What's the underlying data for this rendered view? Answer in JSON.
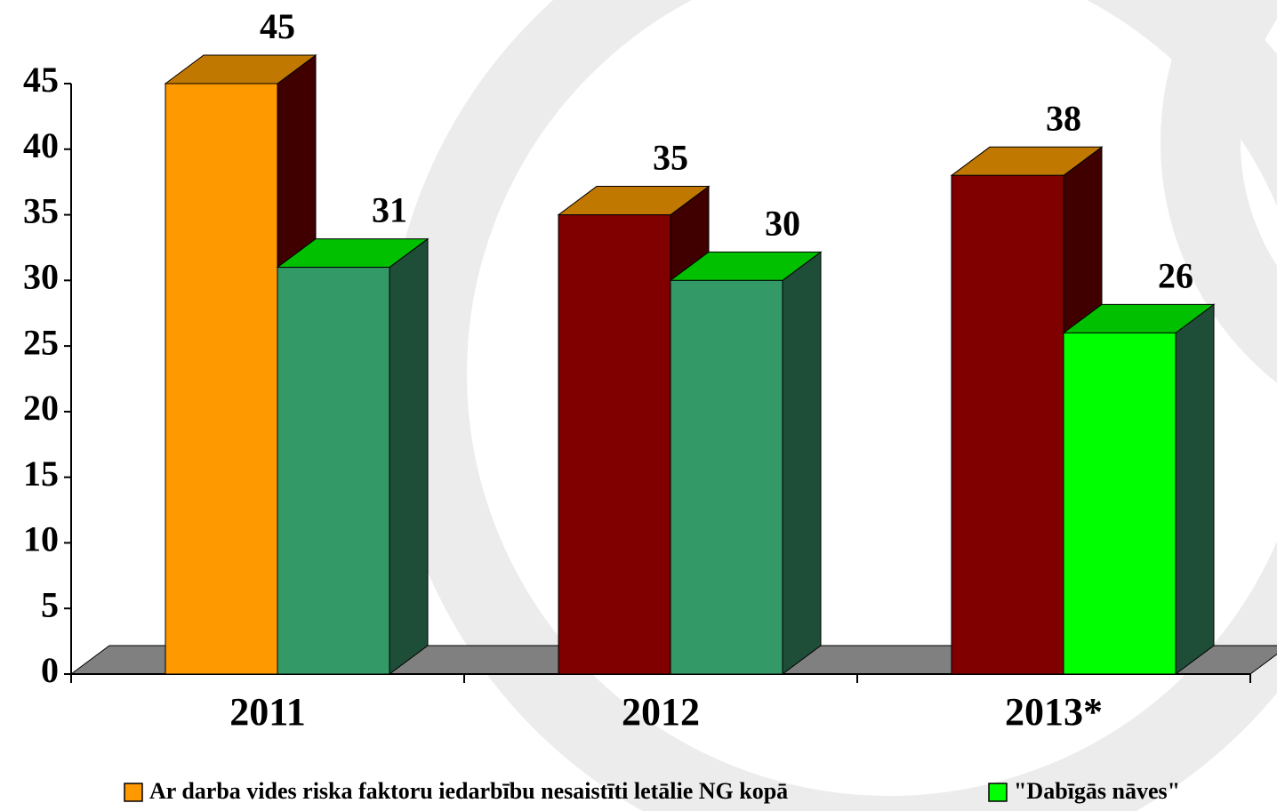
{
  "chart_data": {
    "type": "bar3d",
    "categories": [
      "2011",
      "2012",
      "2013*"
    ],
    "series": [
      {
        "name": "Ar darba vides riska faktoru iedarbību nesaistīti letālie NG kopā",
        "color": "#ff9900",
        "colors": [
          "#ff9900",
          "#800000",
          "#800000"
        ],
        "top_color": "#c07800",
        "side_color": "#400000",
        "values": [
          45,
          35,
          38
        ]
      },
      {
        "name": "\"Dabīgās nāves\"",
        "color": "#00ff00",
        "colors": [
          "#339966",
          "#339966",
          "#00ff00"
        ],
        "top_color": "#00c000",
        "side_color": "#1e4e38",
        "values": [
          31,
          30,
          26
        ]
      }
    ],
    "ylim": [
      0,
      45
    ],
    "yticks": [
      0,
      5,
      10,
      15,
      20,
      25,
      30,
      35,
      40,
      45
    ],
    "floor_color": "#808080"
  }
}
